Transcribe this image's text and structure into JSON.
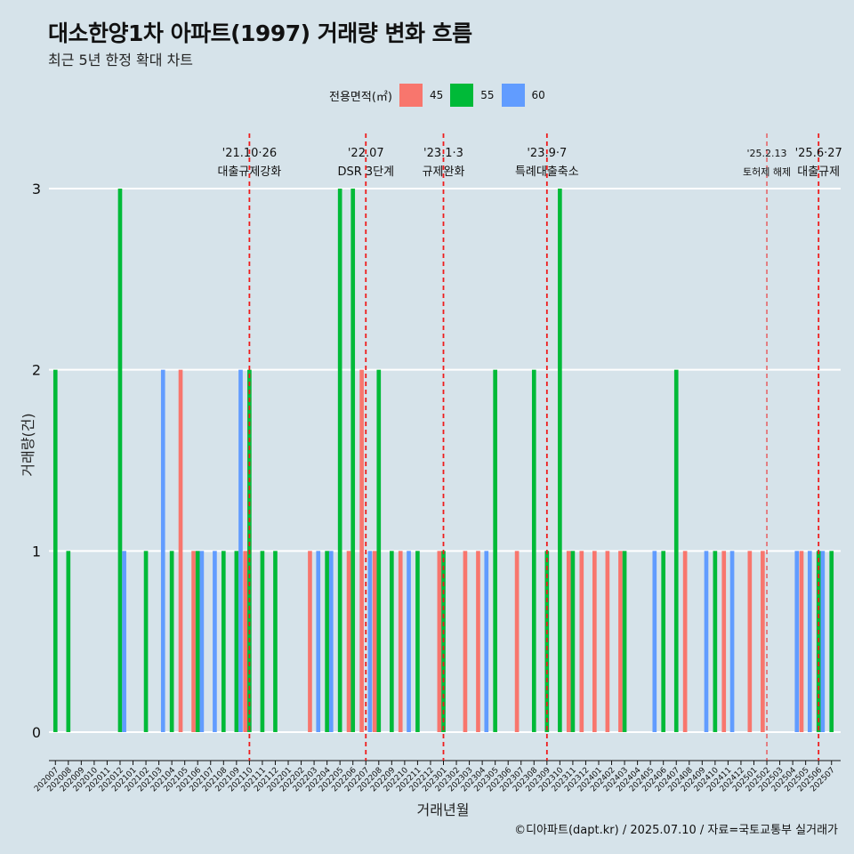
{
  "title": "대소한양1차 아파트(1997) 거래량 변화 흐름",
  "subtitle": "최근 5년 한정 확대 차트",
  "caption": "©디아파트(dapt.kr) / 2025.07.10 / 자료=국토교통부 실거래가",
  "legend": {
    "title": "전용면적(㎡)",
    "items": [
      {
        "label": "45",
        "color": "#F8766D"
      },
      {
        "label": "55",
        "color": "#00BA38"
      },
      {
        "label": "60",
        "color": "#619CFF"
      }
    ]
  },
  "chart_data": {
    "type": "bar",
    "xlabel": "거래년월",
    "ylabel": "거래량(건)",
    "ylim": [
      0,
      3
    ],
    "yticks": [
      0,
      1,
      2,
      3
    ],
    "grid": true,
    "legend_position": "top",
    "categories": [
      "202007",
      "202008",
      "202009",
      "202010",
      "202011",
      "202012",
      "202101",
      "202102",
      "202103",
      "202104",
      "202105",
      "202106",
      "202107",
      "202108",
      "202109",
      "202110",
      "202111",
      "202112",
      "202201",
      "202202",
      "202203",
      "202204",
      "202205",
      "202206",
      "202207",
      "202208",
      "202209",
      "202210",
      "202211",
      "202212",
      "202301",
      "202302",
      "202303",
      "202304",
      "202305",
      "202306",
      "202307",
      "202308",
      "202309",
      "202310",
      "202311",
      "202312",
      "202401",
      "202402",
      "202403",
      "202404",
      "202405",
      "202406",
      "202407",
      "202408",
      "202409",
      "202410",
      "202411",
      "202412",
      "202501",
      "202502",
      "202503",
      "202504",
      "202505",
      "202506",
      "202507"
    ],
    "series": [
      {
        "name": "45",
        "color": "#F8766D",
        "values": [
          0,
          0,
          0,
          0,
          0,
          0,
          0,
          0,
          0,
          0,
          2,
          1,
          0,
          0,
          0,
          1,
          0,
          0,
          0,
          0,
          1,
          0,
          0,
          1,
          2,
          1,
          0,
          1,
          0,
          0,
          1,
          0,
          1,
          1,
          0,
          0,
          1,
          0,
          0,
          0,
          1,
          1,
          1,
          1,
          1,
          0,
          0,
          0,
          0,
          1,
          0,
          0,
          1,
          0,
          1,
          1,
          0,
          0,
          1,
          0,
          0
        ]
      },
      {
        "name": "55",
        "color": "#00BA38",
        "values": [
          2,
          1,
          0,
          0,
          0,
          3,
          0,
          1,
          0,
          1,
          0,
          1,
          0,
          1,
          1,
          2,
          1,
          1,
          0,
          0,
          0,
          1,
          3,
          3,
          0,
          2,
          1,
          0,
          1,
          0,
          1,
          0,
          0,
          0,
          2,
          0,
          0,
          2,
          1,
          3,
          1,
          0,
          0,
          0,
          1,
          0,
          0,
          1,
          2,
          0,
          0,
          1,
          0,
          0,
          0,
          0,
          0,
          0,
          0,
          1,
          1
        ]
      },
      {
        "name": "60",
        "color": "#619CFF",
        "values": [
          0,
          0,
          0,
          0,
          0,
          1,
          0,
          0,
          2,
          0,
          0,
          1,
          1,
          0,
          2,
          0,
          0,
          0,
          0,
          0,
          1,
          1,
          0,
          0,
          1,
          0,
          0,
          1,
          0,
          0,
          0,
          0,
          0,
          1,
          0,
          0,
          0,
          0,
          0,
          0,
          0,
          0,
          0,
          0,
          0,
          0,
          1,
          0,
          0,
          0,
          1,
          0,
          1,
          0,
          0,
          0,
          0,
          1,
          1,
          1,
          0
        ]
      }
    ],
    "annotations": [
      {
        "date": "'21.10·26",
        "label": "대출규제강화",
        "at": "202110",
        "style": "dashed"
      },
      {
        "date": "'22.07",
        "label": "DSR 3단계",
        "at": "202207",
        "style": "dashed"
      },
      {
        "date": "'23.1·3",
        "label": "규제완화",
        "at": "202301",
        "style": "dashed"
      },
      {
        "date": "'23.9·7",
        "label": "특례대출축소",
        "at": "202309",
        "style": "dashed"
      },
      {
        "date": "'25.2.13",
        "label": "토허제 해제",
        "at": "202502",
        "style": "thin"
      },
      {
        "date": "'25.6·27",
        "label": "대출규제",
        "at": "202506",
        "style": "dashed"
      }
    ]
  }
}
